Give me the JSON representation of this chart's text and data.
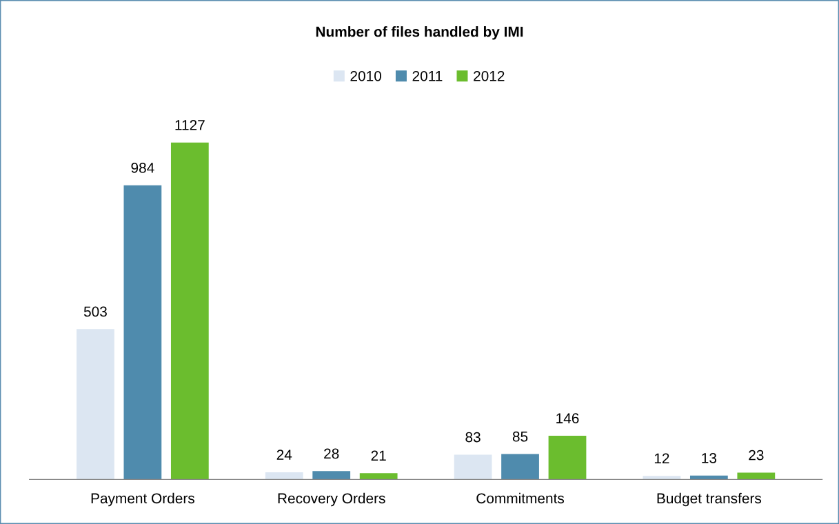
{
  "chart_data": {
    "type": "bar",
    "title": "Number of files handled by IMI",
    "categories": [
      "Payment Orders",
      "Recovery Orders",
      "Commitments",
      "Budget transfers"
    ],
    "series": [
      {
        "name": "2010",
        "color": "#dce6f2",
        "values": [
          503,
          24,
          83,
          12
        ]
      },
      {
        "name": "2011",
        "color": "#4f8bad",
        "values": [
          984,
          28,
          85,
          13
        ]
      },
      {
        "name": "2012",
        "color": "#6bbd2e",
        "values": [
          1127,
          21,
          146,
          23
        ]
      }
    ],
    "data_labels": true,
    "legend": "top",
    "grid": false,
    "tick_labels": "x"
  }
}
